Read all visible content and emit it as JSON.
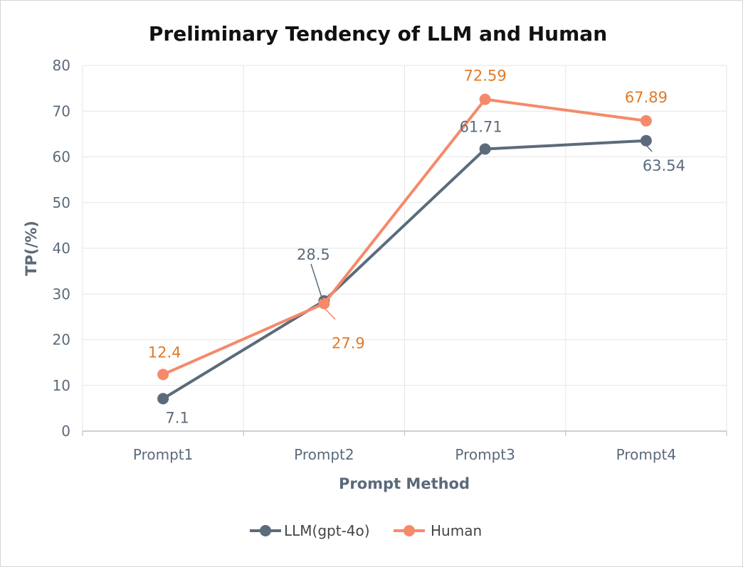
{
  "chart_data": {
    "type": "line",
    "title": "Preliminary Tendency of LLM and Human",
    "xlabel": "Prompt Method",
    "ylabel": "TP(/%)",
    "categories": [
      "Prompt1",
      "Prompt2",
      "Prompt3",
      "Prompt4"
    ],
    "ylim": [
      0,
      80
    ],
    "yticks": [
      0,
      10,
      20,
      30,
      40,
      50,
      60,
      70,
      80
    ],
    "grid": true,
    "legend_position": "bottom",
    "series": [
      {
        "name": "LLM(gpt-4o)",
        "color": "#5b6b7b",
        "values": [
          7.1,
          28.5,
          61.71,
          63.54
        ],
        "labels": [
          "7.1",
          "28.5",
          "61.71",
          "63.54"
        ]
      },
      {
        "name": "Human",
        "color": "#f58a6a",
        "label_color": "#e07a28",
        "values": [
          12.4,
          27.9,
          72.59,
          67.89
        ],
        "labels": [
          "12.4",
          "27.9",
          "72.59",
          "67.89"
        ]
      }
    ]
  }
}
